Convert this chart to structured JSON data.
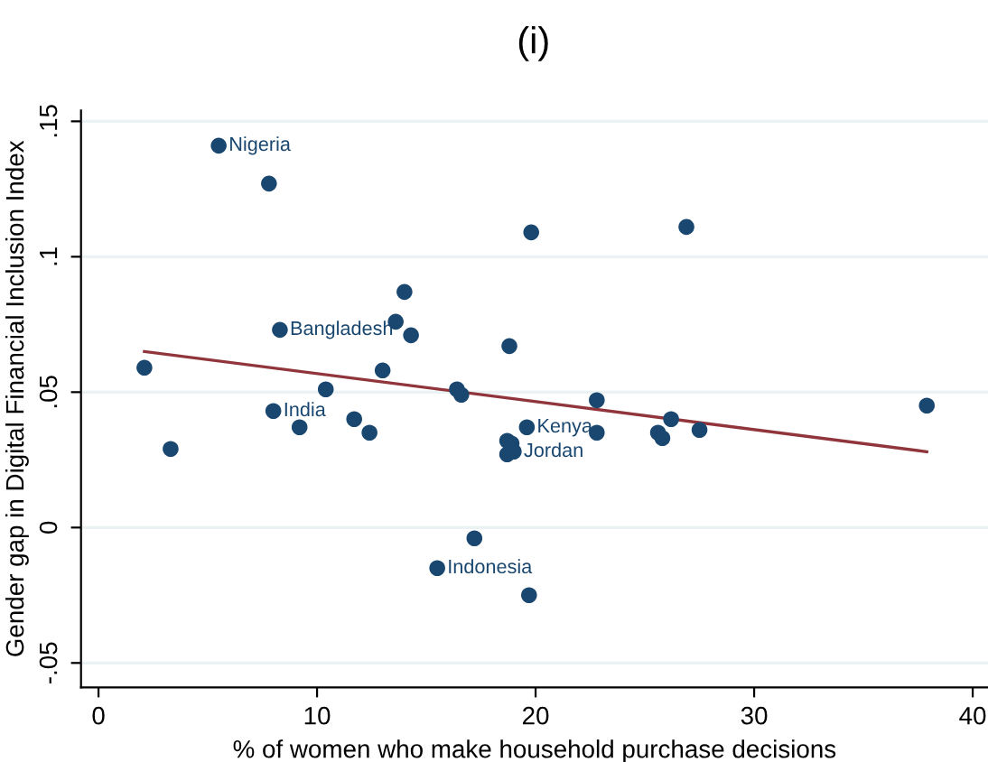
{
  "chart_data": {
    "type": "scatter",
    "title": "(i)",
    "xlabel": "% of women who make household purchase decisions",
    "ylabel": "Gender gap in Digital Financial Inclusion Index",
    "xlim": [
      -0.8,
      40.7
    ],
    "ylim": [
      -0.059,
      0.154
    ],
    "xticks": [
      0,
      10,
      20,
      30,
      40
    ],
    "yticks": [
      {
        "value": -0.05,
        "label": "-.05"
      },
      0,
      {
        "value": 0.05,
        "label": ".05"
      },
      {
        "value": 0.1,
        "label": ".1"
      },
      {
        "value": 0.15,
        "label": ".15"
      }
    ],
    "grid": "y",
    "series": [
      {
        "marker": "circle",
        "color": "#1a476f",
        "x": [
          5.5,
          7.8,
          19.8,
          26.9,
          14.0,
          8.3,
          13.6,
          14.3,
          2.1,
          13.0,
          10.4,
          16.4,
          16.6,
          18.8,
          22.8,
          37.9,
          8.0,
          9.2,
          11.7,
          12.4,
          3.3,
          19.6,
          18.7,
          18.9,
          18.7,
          19.0,
          22.8,
          26.2,
          25.6,
          25.8,
          27.5,
          17.2,
          15.5,
          19.7
        ],
        "values": [
          0.141,
          0.127,
          0.109,
          0.111,
          0.087,
          0.073,
          0.076,
          0.071,
          0.059,
          0.058,
          0.051,
          0.051,
          0.049,
          0.067,
          0.047,
          0.045,
          0.043,
          0.037,
          0.04,
          0.035,
          0.029,
          0.037,
          0.032,
          0.031,
          0.027,
          0.028,
          0.035,
          0.04,
          0.035,
          0.033,
          0.036,
          -0.004,
          -0.015,
          -0.025
        ]
      },
      {
        "type": "line",
        "color": "#90353b",
        "x": [
          2.1,
          37.9
        ],
        "values": [
          0.065,
          0.028
        ]
      }
    ],
    "annotations": [
      {
        "text": "Nigeria",
        "x": 5.5,
        "y": 0.141
      },
      {
        "text": "Bangladesh",
        "x": 8.3,
        "y": 0.073
      },
      {
        "text": "India",
        "x": 8.0,
        "y": 0.043
      },
      {
        "text": "Kenya",
        "x": 19.6,
        "y": 0.037
      },
      {
        "text": "Jordan",
        "x": 19.0,
        "y": 0.028
      },
      {
        "text": "Indonesia",
        "x": 15.5,
        "y": -0.015
      }
    ]
  }
}
